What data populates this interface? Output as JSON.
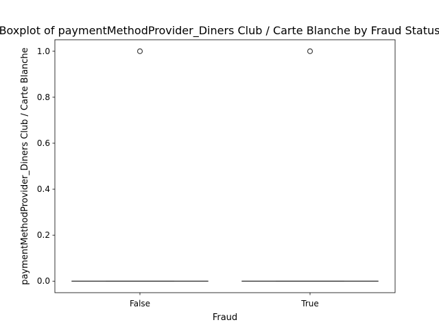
{
  "chart_data": {
    "type": "box",
    "title": "Boxplot of paymentMethodProvider_Diners Club / Carte Blanche by Fraud Status",
    "xlabel": "Fraud",
    "ylabel": "paymentMethodProvider_Diners Club / Carte Blanche",
    "categories": [
      "False",
      "True"
    ],
    "ylim": [
      -0.05,
      1.05
    ],
    "yticks": [
      0.0,
      0.2,
      0.4,
      0.6,
      0.8,
      1.0
    ],
    "ytick_labels": [
      "0.0",
      "0.2",
      "0.4",
      "0.6",
      "0.8",
      "1.0"
    ],
    "boxes": [
      {
        "category": "False",
        "min": 0.0,
        "q1": 0.0,
        "median": 0.0,
        "q3": 0.0,
        "max": 0.0,
        "outliers": [
          1.0
        ]
      },
      {
        "category": "True",
        "min": 0.0,
        "q1": 0.0,
        "median": 0.0,
        "q3": 0.0,
        "max": 0.0,
        "outliers": [
          1.0
        ]
      }
    ],
    "grid": false,
    "colors": {
      "box_line": "#3d3d3d",
      "outlier_edge": "#3d3d3d",
      "axes": "#000000"
    }
  }
}
